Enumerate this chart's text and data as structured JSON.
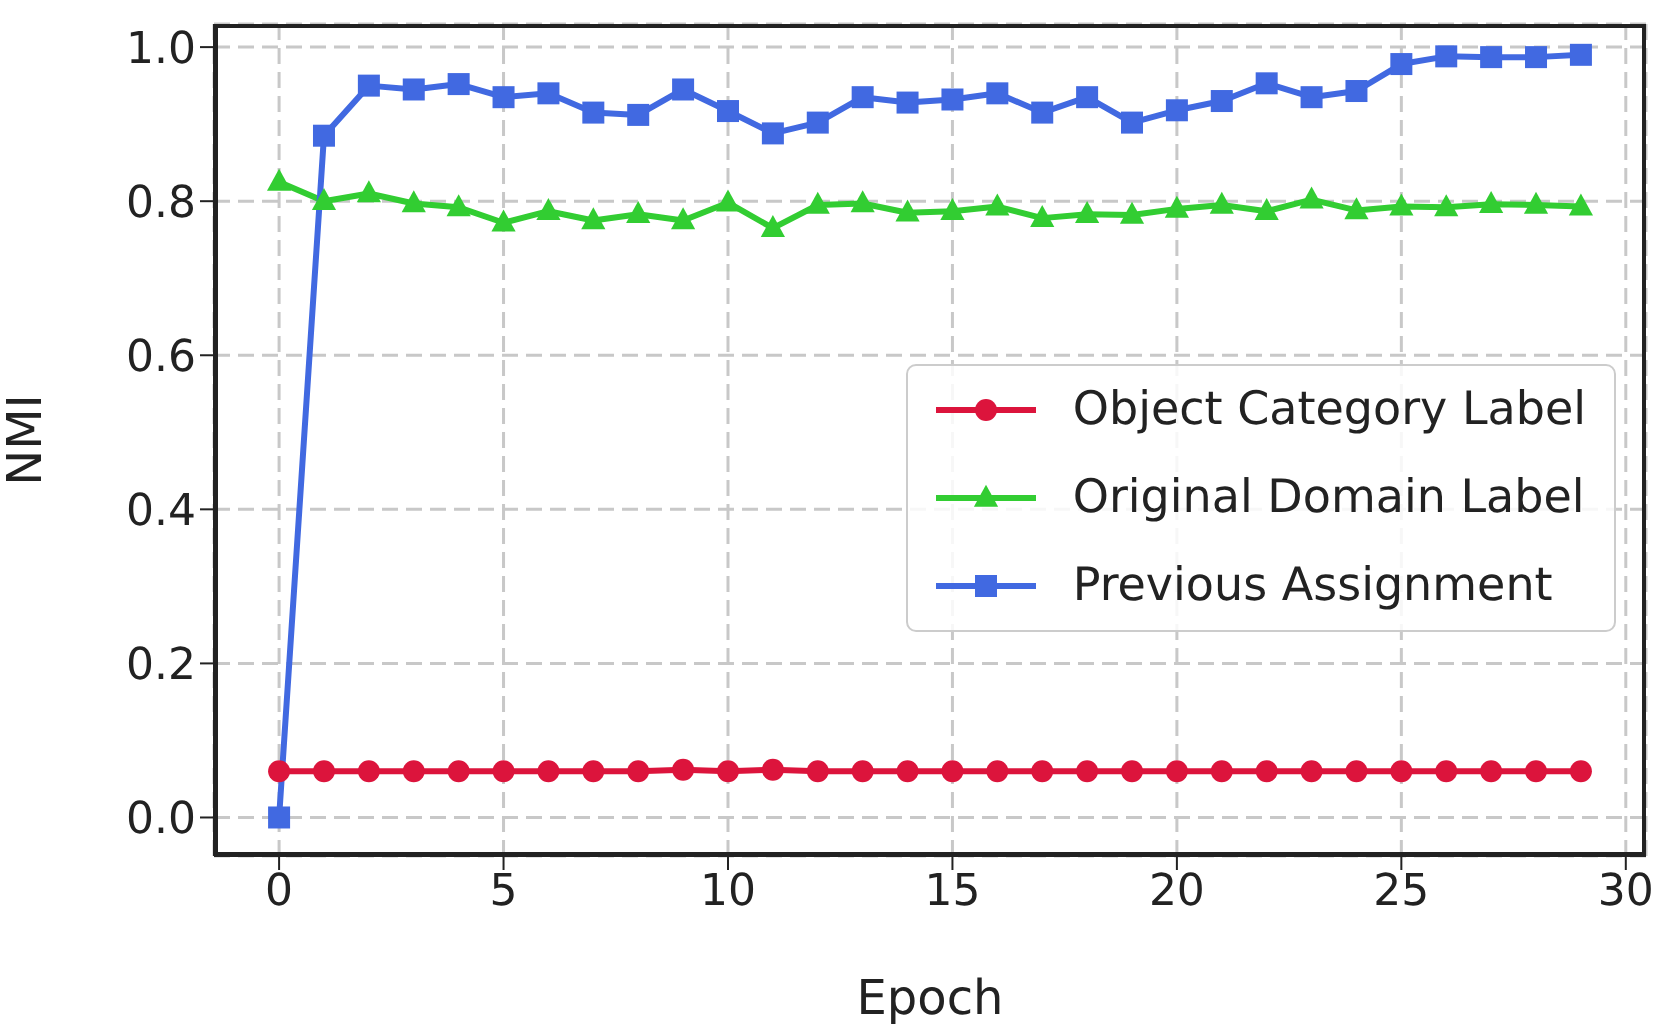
{
  "chart_data": {
    "type": "line",
    "xlabel": "Epoch",
    "ylabel": "NMI",
    "x": [
      0,
      1,
      2,
      3,
      4,
      5,
      6,
      7,
      8,
      9,
      10,
      11,
      12,
      13,
      14,
      15,
      16,
      17,
      18,
      19,
      20,
      21,
      22,
      23,
      24,
      25,
      26,
      27,
      28,
      29
    ],
    "xlim": [
      -1.45,
      30.45
    ],
    "xticks": [
      0,
      5,
      10,
      15,
      20,
      25,
      30
    ],
    "ylim": [
      -0.05,
      1.03
    ],
    "yticks": [
      {
        "value": 0,
        "label": "0.0"
      },
      {
        "value": 0.2,
        "label": "0.2"
      },
      {
        "value": 0.4,
        "label": "0.4"
      },
      {
        "value": 0.6,
        "label": "0.6"
      },
      {
        "value": 0.8,
        "label": "0.8"
      },
      {
        "value": 1,
        "label": "1.0"
      }
    ],
    "grid": true,
    "legend": "right",
    "line_style": "solid",
    "series": [
      {
        "name": "Object Category Label",
        "color": "#dc143c",
        "marker": "circle",
        "values": [
          0.06,
          0.06,
          0.06,
          0.06,
          0.06,
          0.06,
          0.06,
          0.06,
          0.06,
          0.062,
          0.06,
          0.062,
          0.06,
          0.06,
          0.06,
          0.06,
          0.06,
          0.06,
          0.06,
          0.06,
          0.06,
          0.06,
          0.06,
          0.06,
          0.06,
          0.06,
          0.06,
          0.06,
          0.06,
          0.06
        ]
      },
      {
        "name": "Original Domain Label",
        "color": "#32cd32",
        "marker": "triangle",
        "values": [
          0.825,
          0.8,
          0.81,
          0.797,
          0.792,
          0.772,
          0.787,
          0.775,
          0.783,
          0.775,
          0.798,
          0.765,
          0.795,
          0.797,
          0.785,
          0.787,
          0.793,
          0.778,
          0.783,
          0.782,
          0.79,
          0.795,
          0.787,
          0.802,
          0.788,
          0.793,
          0.792,
          0.796,
          0.795,
          0.793
        ]
      },
      {
        "name": "Previous Assignment",
        "color": "#4169e1",
        "marker": "square",
        "values": [
          0,
          0.885,
          0.95,
          0.945,
          0.952,
          0.935,
          0.94,
          0.915,
          0.912,
          0.945,
          0.917,
          0.888,
          0.902,
          0.935,
          0.928,
          0.932,
          0.94,
          0.915,
          0.935,
          0.902,
          0.918,
          0.93,
          0.953,
          0.935,
          0.943,
          0.978,
          0.988,
          0.987,
          0.987,
          0.99
        ]
      }
    ]
  }
}
